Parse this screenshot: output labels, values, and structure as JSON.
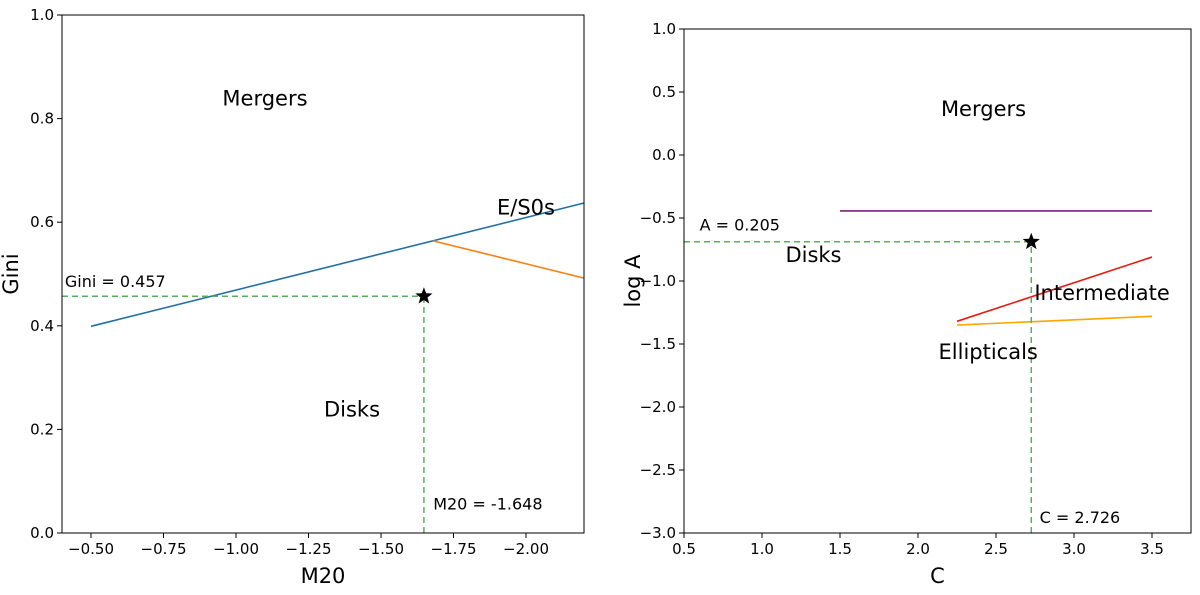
{
  "chart_data": [
    {
      "type": "line",
      "xlabel": "M20",
      "ylabel": "Gini",
      "xlim": [
        -0.4,
        -2.2
      ],
      "ylim": [
        0.0,
        1.0
      ],
      "x_inverted": true,
      "xticks": [
        -0.5,
        -0.75,
        -1.0,
        -1.25,
        -1.5,
        -1.75,
        -2.0
      ],
      "xtick_labels": [
        "−0.50",
        "−0.75",
        "−1.00",
        "−1.25",
        "−1.50",
        "−1.75",
        "−2.00"
      ],
      "yticks": [
        0.0,
        0.2,
        0.4,
        0.6,
        0.8,
        1.0
      ],
      "ytick_labels": [
        "0.0",
        "0.2",
        "0.4",
        "0.6",
        "0.8",
        "1.0"
      ],
      "grid": false,
      "lines": [
        {
          "role": "merger-boundary",
          "color": "#1f6fa8",
          "points": [
            [
              -0.5,
              0.399
            ],
            [
              -2.2,
              0.637
            ]
          ]
        },
        {
          "role": "e-s0-disk-boundary",
          "color": "#ff7f0e",
          "points": [
            [
              -1.68,
              0.564
            ],
            [
              -2.2,
              0.492
            ]
          ]
        },
        {
          "role": "gini-guide",
          "color": "#5aaf5a",
          "dashed": true,
          "points": [
            [
              -0.4,
              0.457
            ],
            [
              -1.648,
              0.457
            ]
          ]
        },
        {
          "role": "m20-guide",
          "color": "#5aaf5a",
          "dashed": true,
          "points": [
            [
              -1.648,
              0.0
            ],
            [
              -1.648,
              0.457
            ]
          ]
        }
      ],
      "points": [
        {
          "x": -1.648,
          "y": 0.457,
          "marker": "star",
          "color": "#000000"
        }
      ],
      "annotations": [
        {
          "text": "Mergers",
          "x": -1.1,
          "y": 0.825,
          "cls": "region-label"
        },
        {
          "text": "E/S0s",
          "x": -2.0,
          "y": 0.615,
          "cls": "region-label"
        },
        {
          "text": "Disks",
          "x": -1.4,
          "y": 0.225,
          "cls": "region-label"
        },
        {
          "text": "Gini = 0.457",
          "x": -0.41,
          "y": 0.475,
          "cls": "anno-label"
        },
        {
          "text": "M20 = -1.648",
          "x": -1.68,
          "y": 0.045,
          "cls": "anno-label"
        }
      ]
    },
    {
      "type": "line",
      "xlabel": "C",
      "ylabel": "log A",
      "xlim": [
        0.5,
        3.75
      ],
      "ylim": [
        -3.0,
        1.0
      ],
      "x_inverted": false,
      "xticks": [
        0.5,
        1.0,
        1.5,
        2.0,
        2.5,
        3.0,
        3.5
      ],
      "xtick_labels": [
        "0.5",
        "1.0",
        "1.5",
        "2.0",
        "2.5",
        "3.0",
        "3.5"
      ],
      "yticks": [
        -3.0,
        -2.5,
        -2.0,
        -1.5,
        -1.0,
        -0.5,
        0.0,
        0.5,
        1.0
      ],
      "ytick_labels": [
        "−3.0",
        "−2.5",
        "−2.0",
        "−1.5",
        "−1.0",
        "−0.5",
        "0.0",
        "0.5",
        "1.0"
      ],
      "grid": false,
      "lines": [
        {
          "role": "merger-boundary",
          "color": "#7b1f7b",
          "points": [
            [
              1.5,
              -0.444
            ],
            [
              3.5,
              -0.444
            ]
          ]
        },
        {
          "role": "disk-intermediate-boundary",
          "color": "#e81a10",
          "points": [
            [
              2.25,
              -1.32
            ],
            [
              3.5,
              -0.81
            ]
          ]
        },
        {
          "role": "intermediate-elliptical-boundary",
          "color": "#ffa500",
          "points": [
            [
              2.25,
              -1.35
            ],
            [
              3.5,
              -1.28
            ]
          ]
        },
        {
          "role": "a-guide",
          "color": "#5aaf5a",
          "dashed": true,
          "points": [
            [
              0.5,
              -0.689
            ],
            [
              2.726,
              -0.689
            ]
          ]
        },
        {
          "role": "c-guide",
          "color": "#5aaf5a",
          "dashed": true,
          "points": [
            [
              2.726,
              -3.0
            ],
            [
              2.726,
              -0.689
            ]
          ]
        }
      ],
      "points": [
        {
          "x": 2.726,
          "y": -0.689,
          "marker": "star",
          "color": "#000000"
        }
      ],
      "annotations": [
        {
          "text": "Mergers",
          "x": 2.42,
          "y": 0.31,
          "cls": "region-label"
        },
        {
          "text": "A = 0.205",
          "x": 0.6,
          "y": -0.6,
          "cls": "anno-label"
        },
        {
          "text": "Disks",
          "x": 1.33,
          "y": -0.85,
          "cls": "region-label"
        },
        {
          "text": "Intermediate",
          "x": 3.18,
          "y": -1.15,
          "cls": "region-label"
        },
        {
          "text": "Ellipticals",
          "x": 2.45,
          "y": -1.62,
          "cls": "region-label"
        },
        {
          "text": "C = 2.726",
          "x": 2.78,
          "y": -2.92,
          "cls": "anno-label"
        }
      ]
    }
  ]
}
